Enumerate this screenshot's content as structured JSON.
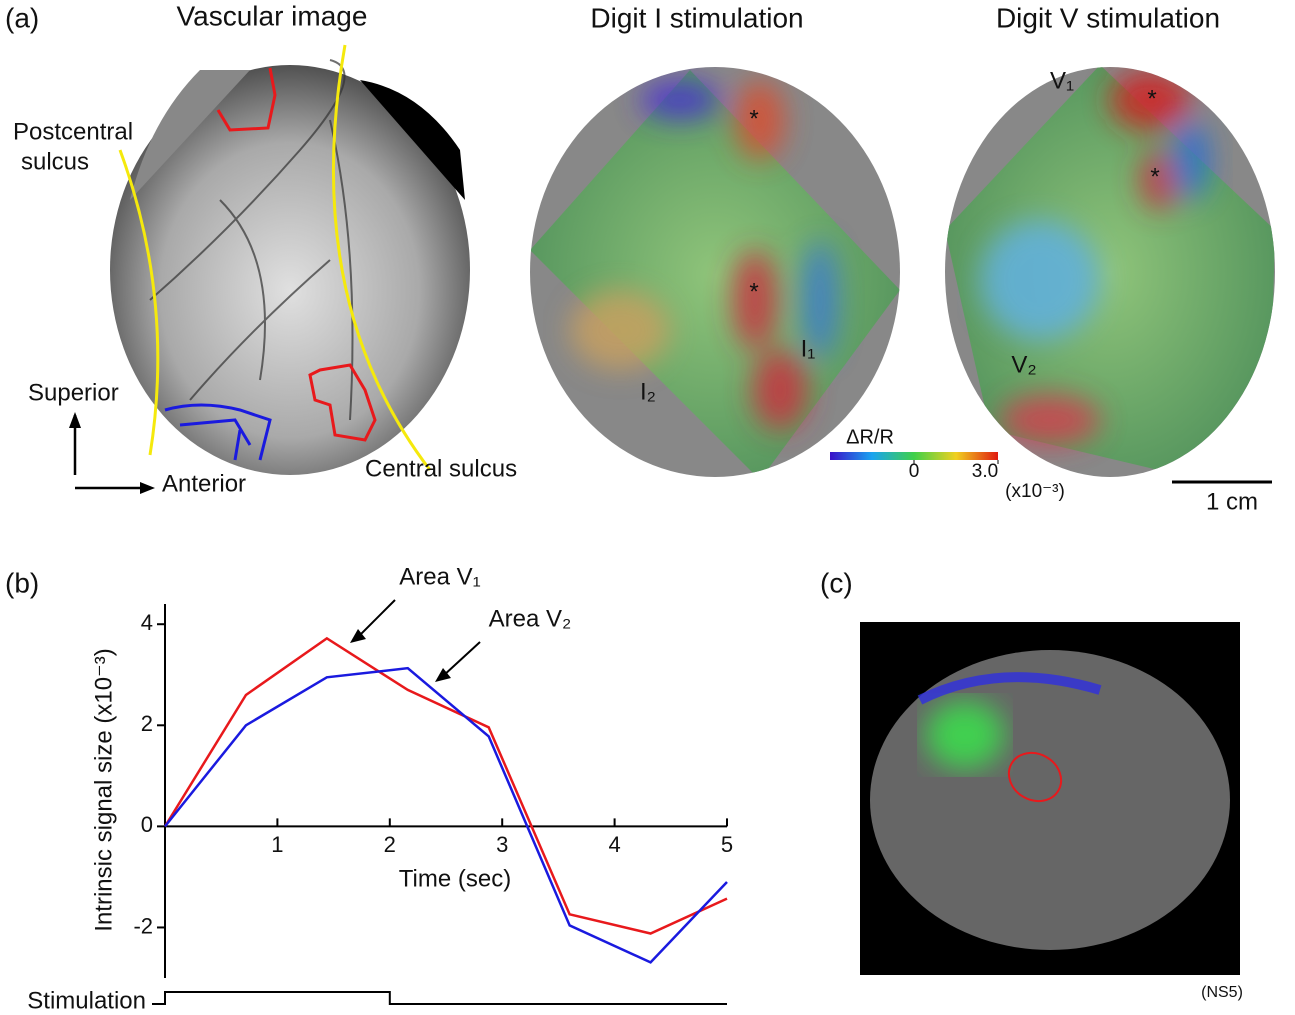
{
  "panel_a": {
    "label": "(a)",
    "vascular": {
      "title": "Vascular image",
      "postcentral": [
        "Postcentral",
        "sulcus"
      ],
      "central": "Central sulcus",
      "superior": "Superior",
      "anterior": "Anterior"
    },
    "digit1": {
      "title": "Digit I stimulation",
      "stars": [
        "*",
        "*"
      ],
      "areas": [
        "I₁",
        "I₂"
      ]
    },
    "digit5": {
      "title": "Digit V stimulation",
      "stars": [
        "*",
        "*"
      ],
      "areas": [
        "V₁",
        "V₂"
      ]
    },
    "colorbar": {
      "title": "ΔR/R",
      "lim": [
        -3,
        3
      ],
      "ticks": [
        0,
        {
          "value": 3,
          "label": "3.0"
        }
      ],
      "unit": "(x10⁻³)"
    },
    "scale_bar": "1 cm"
  },
  "panel_b_label": "(b)",
  "chart_data": {
    "type": "line",
    "xlabel": "Time (sec)",
    "ylabel": "Intrinsic signal size (x10⁻³)",
    "x": [
      0,
      0.72,
      1.44,
      2.16,
      2.88,
      3.6,
      4.32,
      5.0
    ],
    "series": [
      {
        "name": "Area V₁",
        "color": "#e8191c",
        "values": [
          0,
          2.6,
          3.72,
          2.7,
          1.96,
          -1.74,
          -2.12,
          -1.43
        ]
      },
      {
        "name": "Area V₂",
        "color": "#1a1adf",
        "values": [
          0,
          2.0,
          2.95,
          3.13,
          1.78,
          -1.96,
          -2.69,
          -1.1
        ]
      }
    ],
    "xlim": [
      0,
      5
    ],
    "ylim": [
      -3,
      4.4
    ],
    "xticks": [
      1,
      2,
      3,
      4,
      5
    ],
    "yticks": [
      -2,
      0,
      2,
      4
    ],
    "stimulation": {
      "label": "Stimulation",
      "on": [
        0,
        2
      ]
    }
  },
  "panel_c": {
    "label": "(c)",
    "note": "(NS5)"
  }
}
